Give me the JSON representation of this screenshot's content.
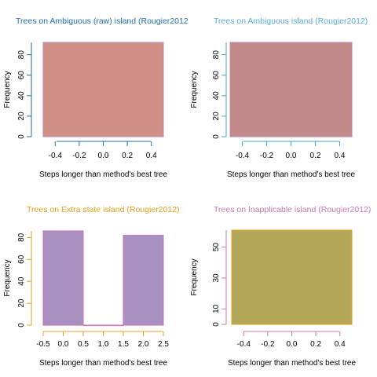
{
  "chart_data": [
    {
      "type": "bar",
      "title": "Trees on Ambiguous (raw) island (Rougier2012",
      "xlabel": "Steps longer than method's best tree",
      "ylabel": "Frequency",
      "xlim": [
        -0.5,
        0.5
      ],
      "ylim": [
        0,
        92
      ],
      "bins": [
        {
          "x0": -0.5,
          "x1": 0.5,
          "value": 92
        }
      ],
      "x_ticks": [
        -0.4,
        -0.2,
        0.0,
        0.2,
        0.4
      ],
      "x_tick_labels": [
        "-0.4",
        "-0.2",
        "0.0",
        "0.2",
        "0.4"
      ],
      "y_ticks": [
        0,
        20,
        40,
        60,
        80
      ],
      "y_tick_labels": [
        "0",
        "20",
        "40",
        "60",
        "80"
      ],
      "colors": {
        "title": "#1f6fa8",
        "fill": "#d09088",
        "border": "#b988b5",
        "axis": "#1f6fa8"
      }
    },
    {
      "type": "bar",
      "title": "Trees on Ambiguous island (Rougier2012)",
      "xlabel": "Steps longer than method's best tree",
      "ylabel": "Frequency",
      "xlim": [
        -0.5,
        0.5
      ],
      "ylim": [
        0,
        92
      ],
      "bins": [
        {
          "x0": -0.5,
          "x1": 0.5,
          "value": 92
        }
      ],
      "x_ticks": [
        -0.4,
        -0.2,
        0.0,
        0.2,
        0.4
      ],
      "x_tick_labels": [
        "-0.4",
        "-0.2",
        "0.0",
        "0.2",
        "0.4"
      ],
      "y_ticks": [
        0,
        20,
        40,
        60,
        80
      ],
      "y_tick_labels": [
        "0",
        "20",
        "40",
        "60",
        "80"
      ],
      "colors": {
        "title": "#5aaed8",
        "fill": "#c28a88",
        "border": "#b988b5",
        "axis": "#4aa3c4"
      }
    },
    {
      "type": "bar",
      "title": "Trees on Extra state island (Rougier2012)",
      "xlabel": "Steps longer than method's best tree",
      "ylabel": "Frequency",
      "xlim": [
        -0.5,
        2.5
      ],
      "ylim": [
        0,
        86
      ],
      "bins": [
        {
          "x0": -0.5,
          "x1": 0.5,
          "value": 86
        },
        {
          "x0": 0.5,
          "x1": 1.5,
          "value": 0
        },
        {
          "x0": 1.5,
          "x1": 2.5,
          "value": 82
        }
      ],
      "x_ticks": [
        -0.5,
        0.0,
        0.5,
        1.0,
        1.5,
        2.0,
        2.5
      ],
      "x_tick_labels": [
        "-0.5",
        "0.0",
        "0.5",
        "1.0",
        "1.5",
        "2.0",
        "2.5"
      ],
      "y_ticks": [
        0,
        20,
        40,
        60,
        80
      ],
      "y_tick_labels": [
        "0",
        "20",
        "40",
        "60",
        "80"
      ],
      "colors": {
        "title": "#e8a020",
        "fill": "#a890c0",
        "border": "#d070b0",
        "axis": "#e8a020"
      }
    },
    {
      "type": "bar",
      "title": "Trees on Inapplicable island (Rougier2012)",
      "xlabel": "Steps longer than method's best tree",
      "ylabel": "Frequency",
      "xlim": [
        -0.5,
        0.5
      ],
      "ylim": [
        0,
        61
      ],
      "bins": [
        {
          "x0": -0.5,
          "x1": 0.5,
          "value": 61
        }
      ],
      "x_ticks": [
        -0.4,
        -0.2,
        0.0,
        0.2,
        0.4
      ],
      "x_tick_labels": [
        "-0.4",
        "-0.2",
        "0.0",
        "0.2",
        "0.4"
      ],
      "y_ticks": [
        0,
        10,
        30,
        50
      ],
      "y_tick_labels": [
        "0",
        "10",
        "30",
        "50"
      ],
      "colors": {
        "title": "#c87ab0",
        "fill": "#b3a85a",
        "border": "#e8a020",
        "axis": "#c87ab0"
      }
    }
  ]
}
